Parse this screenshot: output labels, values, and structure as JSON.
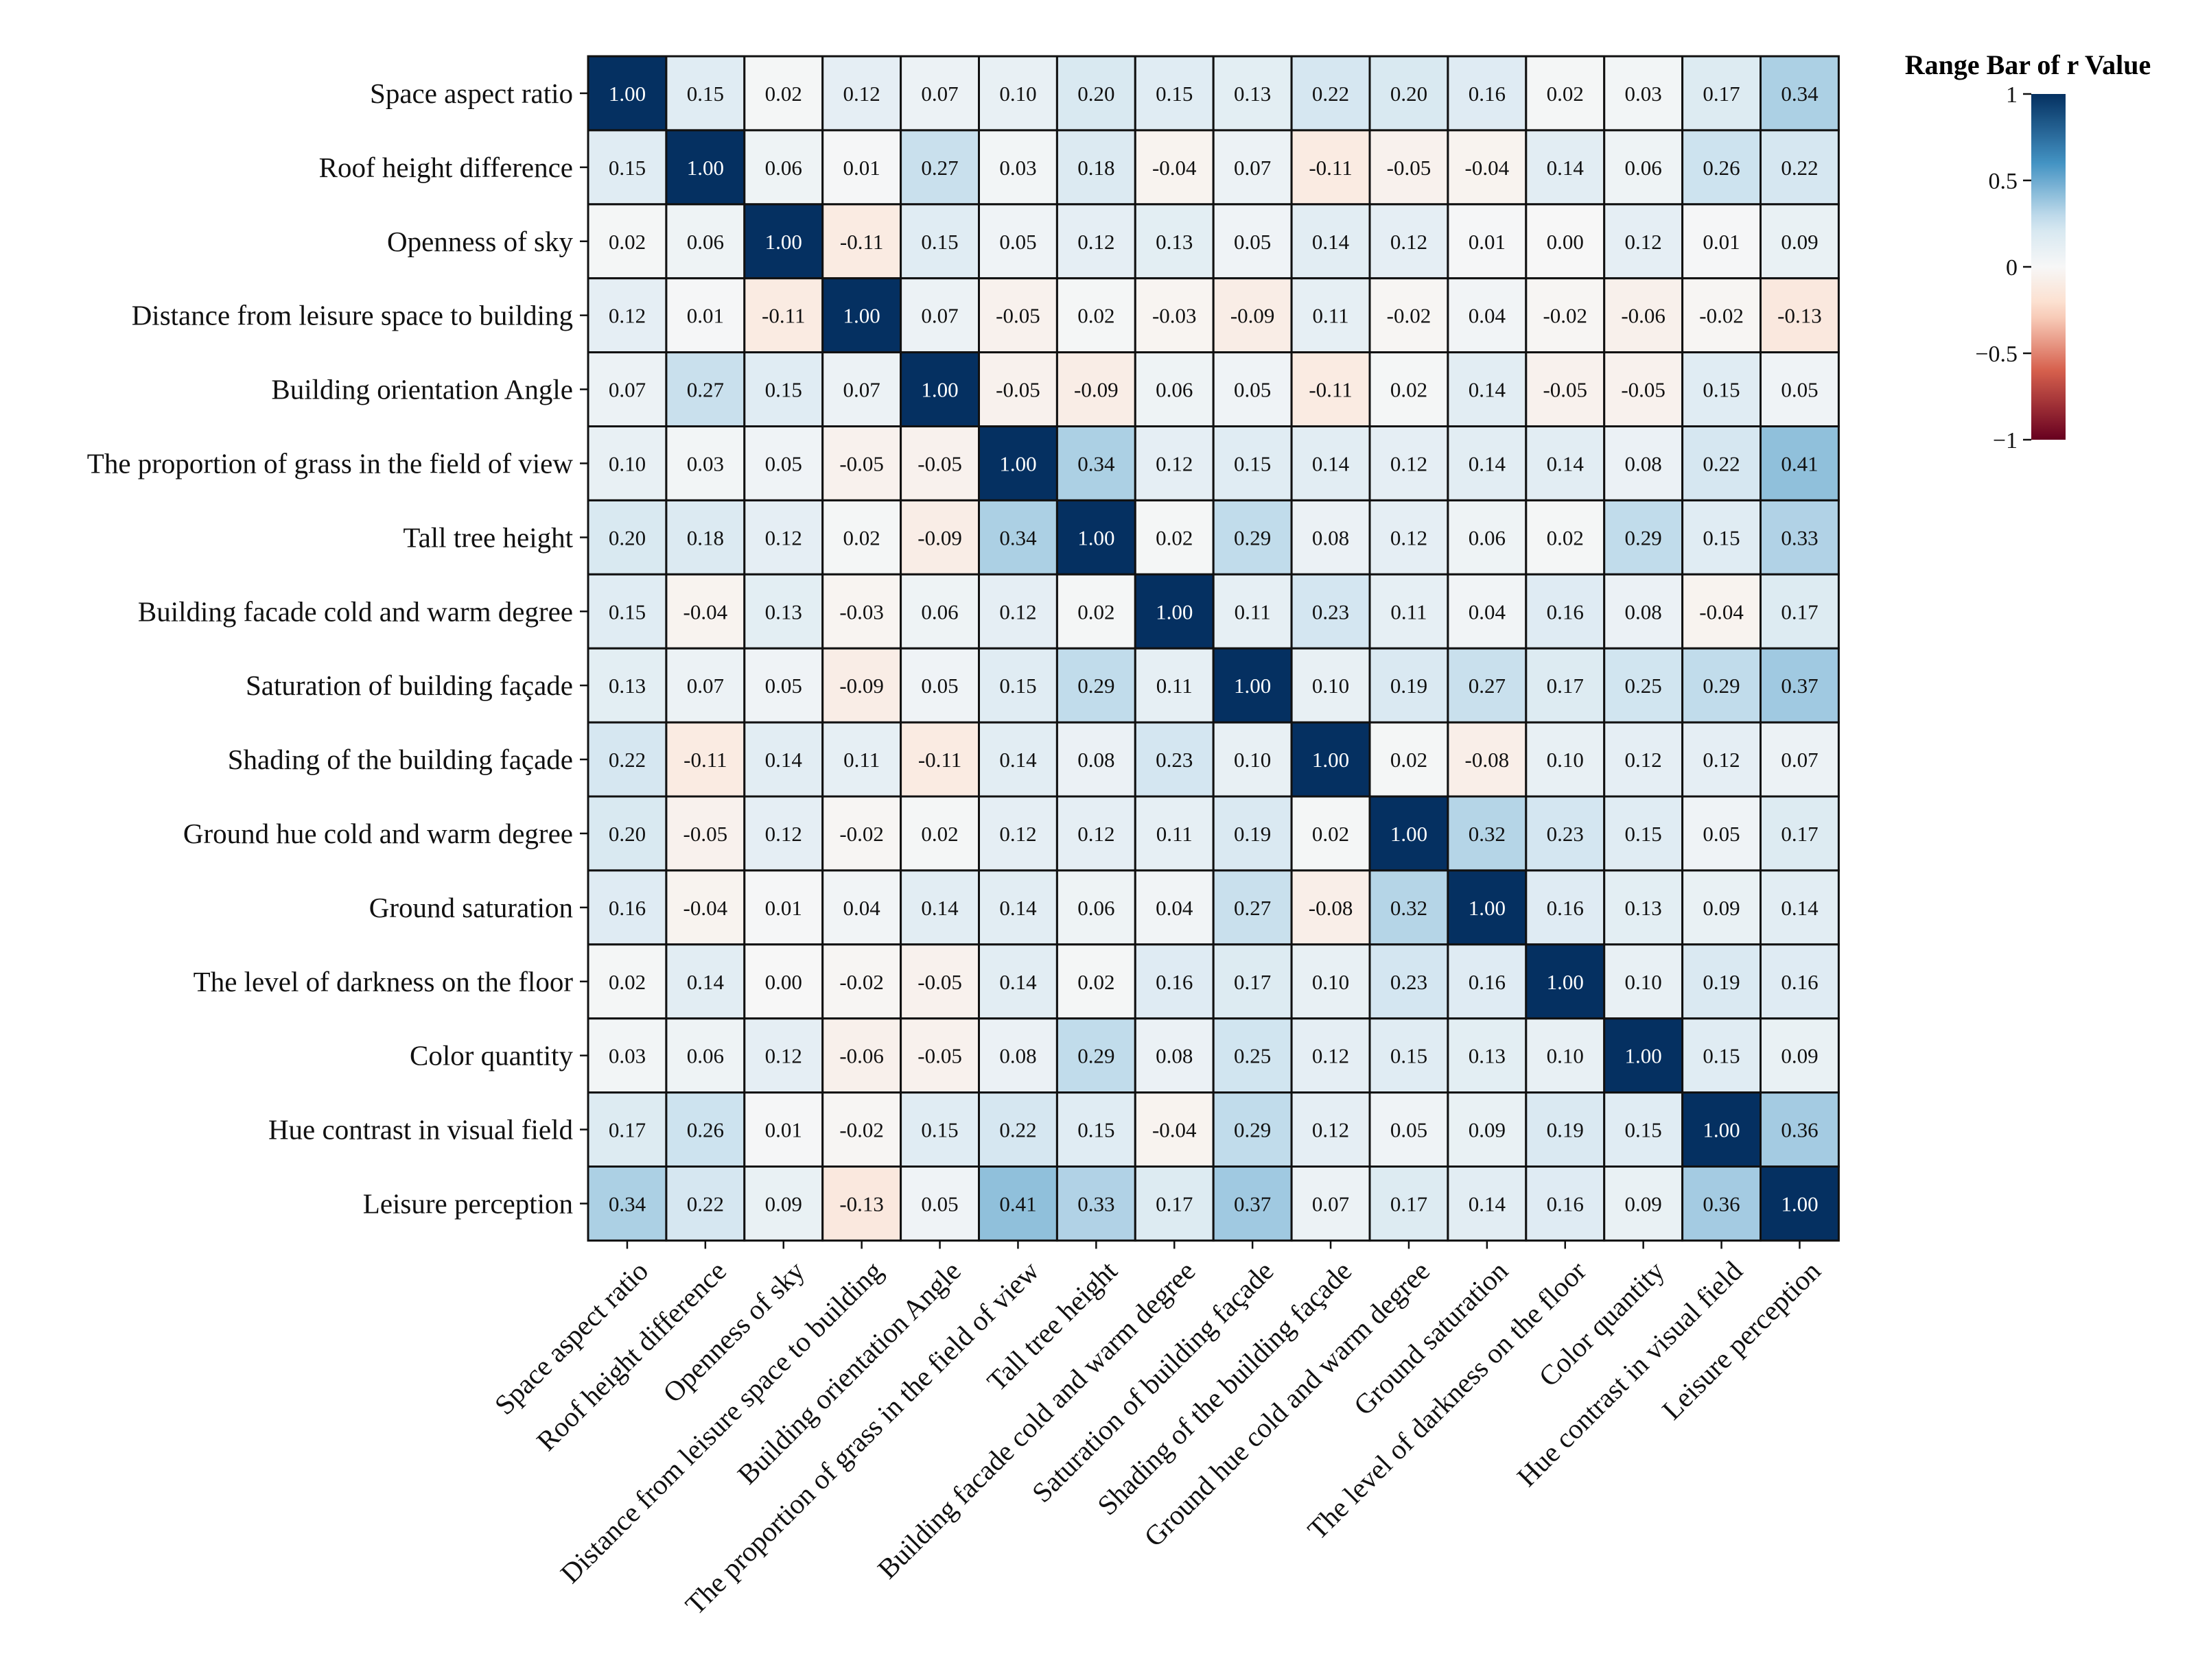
{
  "chart_data": {
    "type": "heatmap",
    "title": "",
    "labels": [
      "Space aspect ratio",
      "Roof height difference",
      "Openness of sky",
      "Distance from leisure space to building",
      "Building orientation Angle",
      "The proportion of grass in the field of view",
      "Tall tree height",
      "Building facade cold and warm degree",
      "Saturation of building façade",
      "Shading of the building façade",
      "Ground hue cold and warm degree",
      "Ground saturation",
      "The level of darkness on the floor",
      "Color quantity",
      "Hue contrast in visual field",
      "Leisure perception"
    ],
    "row_labels": [
      "Space aspect ratio",
      "Roof height difference",
      "Openness of sky",
      "Distance from leisure space to building",
      "Building orientation Angle",
      "The proportion of grass in the field of view",
      "Tall tree height",
      "Building facade cold and warm degree",
      "Saturation of building façade",
      "Shading of the building façade",
      "Ground hue cold and warm degree",
      "Ground saturation",
      "The level of darkness on the floor",
      "Color quantity",
      "Hue contrast in visual field",
      "Leisure perception "
    ],
    "matrix": [
      [
        "1.00",
        "0.15",
        "0.02",
        "0.12",
        "0.07",
        "0.10",
        "0.20",
        "0.15",
        "0.13",
        "0.22",
        "0.20",
        "0.16",
        "0.02",
        "0.03",
        "0.17",
        "0.34"
      ],
      [
        "0.15",
        "1.00",
        "0.06",
        "0.01",
        "0.27",
        "0.03",
        "0.18",
        "-0.04",
        "0.07",
        "-0.11",
        "-0.05",
        "-0.04",
        "0.14",
        "0.06",
        "0.26",
        "0.22"
      ],
      [
        "0.02",
        "0.06",
        "1.00",
        "-0.11",
        "0.15",
        "0.05",
        "0.12",
        "0.13",
        "0.05",
        "0.14",
        "0.12",
        "0.01",
        "0.00",
        "0.12",
        "0.01",
        "0.09"
      ],
      [
        "0.12",
        "0.01",
        "-0.11",
        "1.00",
        "0.07",
        "-0.05",
        "0.02",
        "-0.03",
        "-0.09",
        "0.11",
        "-0.02",
        "0.04",
        "-0.02",
        "-0.06",
        "-0.02",
        "-0.13"
      ],
      [
        "0.07",
        "0.27",
        "0.15",
        "0.07",
        "1.00",
        "-0.05",
        "-0.09",
        "0.06",
        "0.05",
        "-0.11",
        "0.02",
        "0.14",
        "-0.05",
        "-0.05",
        "0.15",
        "0.05"
      ],
      [
        "0.10",
        "0.03",
        "0.05",
        "-0.05",
        "-0.05",
        "1.00",
        "0.34",
        "0.12",
        "0.15",
        "0.14",
        "0.12",
        "0.14",
        "0.14",
        "0.08",
        "0.22",
        "0.41"
      ],
      [
        "0.20",
        "0.18",
        "0.12",
        "0.02",
        "-0.09",
        "0.34",
        "1.00",
        "0.02",
        "0.29",
        "0.08",
        "0.12",
        "0.06",
        "0.02",
        "0.29",
        "0.15",
        "0.33"
      ],
      [
        "0.15",
        "-0.04",
        "0.13",
        "-0.03",
        "0.06",
        "0.12",
        "0.02",
        "1.00",
        "0.11",
        "0.23",
        "0.11",
        "0.04",
        "0.16",
        "0.08",
        "-0.04",
        "0.17"
      ],
      [
        "0.13",
        "0.07",
        "0.05",
        "-0.09",
        "0.05",
        "0.15",
        "0.29",
        "0.11",
        "1.00",
        "0.10",
        "0.19",
        "0.27",
        "0.17",
        "0.25",
        "0.29",
        "0.37"
      ],
      [
        "0.22",
        "-0.11",
        "0.14",
        "0.11",
        "-0.11",
        "0.14",
        "0.08",
        "0.23",
        "0.10",
        "1.00",
        "0.02",
        "-0.08",
        "0.10",
        "0.12",
        "0.12",
        "0.07"
      ],
      [
        "0.20",
        "-0.05",
        "0.12",
        "-0.02",
        "0.02",
        "0.12",
        "0.12",
        "0.11",
        "0.19",
        "0.02",
        "1.00",
        "0.32",
        "0.23",
        "0.15",
        "0.05",
        "0.17"
      ],
      [
        "0.16",
        "-0.04",
        "0.01",
        "0.04",
        "0.14",
        "0.14",
        "0.06",
        "0.04",
        "0.27",
        "-0.08",
        "0.32",
        "1.00",
        "0.16",
        "0.13",
        "0.09",
        "0.14"
      ],
      [
        "0.02",
        "0.14",
        "0.00",
        "-0.02",
        "-0.05",
        "0.14",
        "0.02",
        "0.16",
        "0.17",
        "0.10",
        "0.23",
        "0.16",
        "1.00",
        "0.10",
        "0.19",
        "0.16"
      ],
      [
        "0.03",
        "0.06",
        "0.12",
        "-0.06",
        "-0.05",
        "0.08",
        "0.29",
        "0.08",
        "0.25",
        "0.12",
        "0.15",
        "0.13",
        "0.10",
        "1.00",
        "0.15",
        "0.09"
      ],
      [
        "0.17",
        "0.26",
        "0.01",
        "-0.02",
        "0.15",
        "0.22",
        "0.15",
        "-0.04",
        "0.29",
        "0.12",
        "0.05",
        "0.09",
        "0.19",
        "0.15",
        "1.00",
        "0.36"
      ],
      [
        "0.34",
        "0.22",
        "0.09",
        "-0.13",
        "0.05",
        "0.41",
        "0.33",
        "0.17",
        "0.37",
        "0.07",
        "0.17",
        "0.14",
        "0.16",
        "0.09",
        "0.36",
        "1.00"
      ]
    ],
    "colorbar": {
      "title": "Range Bar of  r  Value",
      "range": [
        -1,
        1
      ],
      "ticks": [
        1,
        0.5,
        0,
        -0.5,
        -1
      ],
      "tick_labels": [
        "1",
        "0.5",
        "0",
        "−0.5",
        "−1"
      ],
      "colormap": "RdBu"
    },
    "colors": {
      "neg_dark": "#67001f",
      "neg_mid": "#d6604d",
      "neg_light": "#fddbc7",
      "neutral": "#f7f7f7",
      "pos_light": "#d1e5f0",
      "pos_mid": "#4393c3",
      "pos_dark": "#053061"
    }
  }
}
